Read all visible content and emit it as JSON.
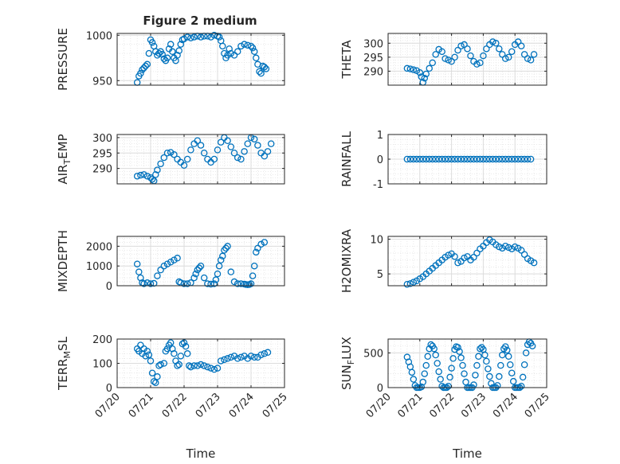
{
  "figure": {
    "title": "Figure 2 medium",
    "marker_color": "#0072BD"
  },
  "chart_data": [
    {
      "type": "scatter",
      "title": "Figure 2 medium",
      "xlabel": "",
      "ylabel": "PRESSURE",
      "xlim": [
        0,
        5
      ],
      "ylim": [
        945,
        1002
      ],
      "yticks": [
        950,
        1000
      ],
      "ytick_labels": [
        "950",
        "1000"
      ],
      "xticks": [
        0,
        1,
        2,
        3,
        4,
        5
      ],
      "xtick_labels": [],
      "grid": true,
      "minor_grid": true,
      "x": [
        0.6,
        0.65,
        0.7,
        0.75,
        0.8,
        0.85,
        0.9,
        0.95,
        1.0,
        1.05,
        1.1,
        1.15,
        1.2,
        1.25,
        1.3,
        1.35,
        1.4,
        1.45,
        1.5,
        1.55,
        1.6,
        1.65,
        1.7,
        1.75,
        1.8,
        1.85,
        1.9,
        1.95,
        2.0,
        2.1,
        2.2,
        2.3,
        2.4,
        2.5,
        2.6,
        2.7,
        2.8,
        2.9,
        3.0,
        3.05,
        3.1,
        3.15,
        3.2,
        3.25,
        3.3,
        3.35,
        3.4,
        3.5,
        3.6,
        3.7,
        3.8,
        3.9,
        4.0,
        4.05,
        4.1,
        4.15,
        4.2,
        4.25,
        4.3,
        4.35,
        4.4,
        4.45
      ],
      "y": [
        948,
        955,
        958,
        962,
        964,
        966,
        968,
        980,
        995,
        992,
        988,
        982,
        978,
        980,
        982,
        979,
        974,
        972,
        975,
        985,
        990,
        982,
        975,
        972,
        978,
        983,
        990,
        995,
        996,
        998,
        997,
        998,
        999,
        998,
        999,
        999,
        998,
        1000,
        999,
        998,
        994,
        988,
        980,
        975,
        978,
        985,
        980,
        978,
        982,
        988,
        990,
        989,
        988,
        986,
        982,
        975,
        968,
        960,
        958,
        966,
        965,
        963
      ]
    },
    {
      "type": "scatter",
      "title": "",
      "xlabel": "",
      "ylabel": "THETA",
      "xlim": [
        0,
        5
      ],
      "ylim": [
        285,
        303.5
      ],
      "yticks": [
        290,
        295,
        300
      ],
      "ytick_labels": [
        "290",
        "295",
        "300"
      ],
      "xticks": [
        0,
        1,
        2,
        3,
        4,
        5
      ],
      "xtick_labels": [],
      "grid": true,
      "minor_grid": true,
      "x": [
        0.6,
        0.7,
        0.8,
        0.9,
        1.0,
        1.05,
        1.1,
        1.15,
        1.2,
        1.3,
        1.4,
        1.5,
        1.6,
        1.7,
        1.8,
        1.9,
        2.0,
        2.1,
        2.2,
        2.3,
        2.4,
        2.5,
        2.6,
        2.7,
        2.8,
        2.9,
        3.0,
        3.1,
        3.2,
        3.3,
        3.4,
        3.5,
        3.6,
        3.7,
        3.8,
        3.9,
        4.0,
        4.1,
        4.2,
        4.3,
        4.4,
        4.5,
        4.6
      ],
      "y": [
        291,
        290.8,
        290.5,
        290.2,
        289.5,
        288,
        286,
        287.5,
        289,
        291,
        293,
        296,
        297.8,
        297,
        294.5,
        294,
        293.5,
        295,
        297.5,
        299,
        299.5,
        298,
        295.5,
        293.5,
        292.5,
        293,
        295.5,
        298,
        299.5,
        300.5,
        300,
        298,
        296,
        294.5,
        295,
        297,
        299.5,
        300.5,
        299,
        296,
        294.5,
        294,
        296
      ]
    },
    {
      "type": "scatter",
      "title": "",
      "xlabel": "",
      "ylabel": "AIR_TEMP",
      "xlim": [
        0,
        5
      ],
      "ylim": [
        285,
        301
      ],
      "yticks": [
        290,
        295,
        300
      ],
      "ytick_labels": [
        "290",
        "295",
        "300"
      ],
      "xticks": [
        0,
        1,
        2,
        3,
        4,
        5
      ],
      "xtick_labels": [],
      "grid": true,
      "minor_grid": true,
      "x": [
        0.6,
        0.7,
        0.8,
        0.9,
        1.0,
        1.05,
        1.1,
        1.15,
        1.2,
        1.3,
        1.4,
        1.5,
        1.6,
        1.7,
        1.8,
        1.9,
        2.0,
        2.1,
        2.2,
        2.3,
        2.4,
        2.5,
        2.6,
        2.7,
        2.8,
        2.9,
        3.0,
        3.1,
        3.2,
        3.3,
        3.4,
        3.5,
        3.6,
        3.7,
        3.8,
        3.9,
        4.0,
        4.1,
        4.2,
        4.3,
        4.4,
        4.5,
        4.6
      ],
      "y": [
        287.5,
        287.8,
        288,
        287.5,
        287,
        286.5,
        286,
        288,
        289.5,
        291.5,
        293.5,
        295,
        295.2,
        294.5,
        293,
        292,
        291,
        293,
        296,
        298,
        299,
        297.5,
        295,
        293,
        292,
        293,
        296,
        298.5,
        300,
        299,
        297,
        295,
        293.5,
        293,
        295.5,
        298,
        300,
        299.5,
        297.5,
        295,
        294,
        295.5,
        298
      ]
    },
    {
      "type": "scatter",
      "title": "",
      "xlabel": "",
      "ylabel": "RAINFALL",
      "xlim": [
        0,
        5
      ],
      "ylim": [
        -1,
        1
      ],
      "yticks": [
        -1,
        0,
        1
      ],
      "ytick_labels": [
        "-1",
        "0",
        "1"
      ],
      "xticks": [
        0,
        1,
        2,
        3,
        4,
        5
      ],
      "xtick_labels": [],
      "grid": true,
      "minor_grid": true,
      "x": [
        0.6,
        0.7,
        0.8,
        0.9,
        1.0,
        1.1,
        1.2,
        1.3,
        1.4,
        1.5,
        1.6,
        1.7,
        1.8,
        1.9,
        2.0,
        2.1,
        2.2,
        2.3,
        2.4,
        2.5,
        2.6,
        2.7,
        2.8,
        2.9,
        3.0,
        3.1,
        3.2,
        3.3,
        3.4,
        3.5,
        3.6,
        3.7,
        3.8,
        3.9,
        4.0,
        4.1,
        4.2,
        4.3,
        4.4,
        4.5
      ],
      "y": [
        0,
        0,
        0,
        0,
        0,
        0,
        0,
        0,
        0,
        0,
        0,
        0,
        0,
        0,
        0,
        0,
        0,
        0,
        0,
        0,
        0,
        0,
        0,
        0,
        0,
        0,
        0,
        0,
        0,
        0,
        0,
        0,
        0,
        0,
        0,
        0,
        0,
        0,
        0,
        0
      ]
    },
    {
      "type": "scatter",
      "title": "",
      "xlabel": "",
      "ylabel": "MIXDEPTH",
      "xlim": [
        0,
        5
      ],
      "ylim": [
        0,
        2500
      ],
      "yticks": [
        0,
        1000,
        2000
      ],
      "ytick_labels": [
        "0",
        "1000",
        "2000"
      ],
      "xticks": [
        0,
        1,
        2,
        3,
        4,
        5
      ],
      "xtick_labels": [],
      "grid": true,
      "minor_grid": true,
      "x": [
        0.6,
        0.65,
        0.7,
        0.75,
        0.8,
        0.9,
        1.0,
        1.1,
        1.2,
        1.3,
        1.4,
        1.5,
        1.6,
        1.7,
        1.8,
        1.85,
        1.9,
        2.0,
        2.1,
        2.2,
        2.3,
        2.35,
        2.4,
        2.45,
        2.5,
        2.6,
        2.7,
        2.8,
        2.9,
        2.95,
        3.0,
        3.05,
        3.1,
        3.15,
        3.2,
        3.25,
        3.3,
        3.4,
        3.5,
        3.6,
        3.7,
        3.8,
        3.85,
        3.9,
        3.95,
        4.0,
        4.05,
        4.1,
        4.15,
        4.2,
        4.3,
        4.4
      ],
      "y": [
        1100,
        700,
        400,
        150,
        100,
        150,
        100,
        120,
        500,
        800,
        1000,
        1100,
        1200,
        1300,
        1400,
        200,
        150,
        100,
        100,
        150,
        400,
        600,
        800,
        900,
        1000,
        400,
        100,
        80,
        100,
        300,
        600,
        1000,
        1300,
        1500,
        1800,
        1900,
        2000,
        700,
        200,
        100,
        100,
        80,
        60,
        50,
        60,
        100,
        500,
        1000,
        1700,
        1900,
        2100,
        2200
      ]
    },
    {
      "type": "scatter",
      "title": "",
      "xlabel": "",
      "ylabel": "H2OMIXRA",
      "xlim": [
        0,
        5
      ],
      "ylim": [
        3.3,
        10.4
      ],
      "yticks": [
        5,
        10
      ],
      "ytick_labels": [
        "5",
        "10"
      ],
      "xticks": [
        0,
        1,
        2,
        3,
        4,
        5
      ],
      "xtick_labels": [],
      "grid": true,
      "minor_grid": true,
      "x": [
        0.6,
        0.7,
        0.8,
        0.9,
        1.0,
        1.1,
        1.2,
        1.3,
        1.4,
        1.5,
        1.6,
        1.7,
        1.8,
        1.9,
        2.0,
        2.1,
        2.2,
        2.3,
        2.4,
        2.5,
        2.6,
        2.7,
        2.8,
        2.9,
        3.0,
        3.1,
        3.2,
        3.3,
        3.4,
        3.5,
        3.6,
        3.7,
        3.8,
        3.9,
        4.0,
        4.1,
        4.2,
        4.3,
        4.4,
        4.5,
        4.6
      ],
      "y": [
        3.5,
        3.6,
        3.8,
        4.0,
        4.3,
        4.6,
        5.0,
        5.4,
        5.8,
        6.2,
        6.6,
        7.0,
        7.4,
        7.7,
        7.9,
        7.5,
        6.6,
        6.8,
        7.3,
        7.5,
        7.0,
        7.4,
        8.0,
        8.6,
        9.0,
        9.5,
        9.9,
        9.6,
        9.2,
        8.9,
        8.7,
        9.0,
        8.8,
        8.6,
        8.9,
        8.7,
        8.4,
        7.8,
        7.2,
        6.9,
        6.6
      ]
    },
    {
      "type": "scatter",
      "title": "",
      "xlabel": "Time",
      "ylabel": "TERR_MSL",
      "xlim": [
        0,
        5
      ],
      "ylim": [
        0,
        200
      ],
      "yticks": [
        0,
        100,
        200
      ],
      "ytick_labels": [
        "0",
        "100",
        "200"
      ],
      "xticks": [
        0,
        1,
        2,
        3,
        4,
        5
      ],
      "xtick_labels": [
        "07/20",
        "07/21",
        "07/22",
        "07/23",
        "07/24",
        "07/25"
      ],
      "grid": true,
      "minor_grid": true,
      "x": [
        0.6,
        0.65,
        0.7,
        0.75,
        0.8,
        0.85,
        0.9,
        0.95,
        1.0,
        1.05,
        1.1,
        1.15,
        1.2,
        1.25,
        1.3,
        1.4,
        1.45,
        1.5,
        1.55,
        1.6,
        1.65,
        1.7,
        1.75,
        1.8,
        1.85,
        1.9,
        1.95,
        2.0,
        2.05,
        2.1,
        2.15,
        2.2,
        2.3,
        2.4,
        2.5,
        2.6,
        2.7,
        2.8,
        2.9,
        3.0,
        3.1,
        3.2,
        3.3,
        3.4,
        3.5,
        3.6,
        3.7,
        3.8,
        3.9,
        4.0,
        4.1,
        4.2,
        4.3,
        4.4,
        4.5
      ],
      "y": [
        160,
        150,
        175,
        140,
        160,
        130,
        150,
        135,
        110,
        60,
        25,
        20,
        45,
        90,
        95,
        100,
        150,
        160,
        175,
        185,
        160,
        140,
        110,
        90,
        95,
        130,
        180,
        185,
        170,
        140,
        90,
        85,
        90,
        90,
        95,
        90,
        85,
        80,
        75,
        80,
        110,
        115,
        120,
        125,
        130,
        120,
        125,
        130,
        120,
        130,
        125,
        125,
        135,
        140,
        145
      ]
    },
    {
      "type": "scatter",
      "title": "",
      "xlabel": "Time",
      "ylabel": "SUN_FLUX",
      "xlim": [
        0,
        5
      ],
      "ylim": [
        0,
        700
      ],
      "yticks": [
        0,
        500
      ],
      "ytick_labels": [
        "0",
        "500"
      ],
      "xticks": [
        0,
        1,
        2,
        3,
        4,
        5
      ],
      "xtick_labels": [
        "07/20",
        "07/21",
        "07/22",
        "07/23",
        "07/24",
        "07/25"
      ],
      "grid": true,
      "minor_grid": true,
      "x": [
        0.6,
        0.65,
        0.7,
        0.75,
        0.8,
        0.85,
        0.9,
        0.95,
        1.0,
        1.05,
        1.1,
        1.15,
        1.2,
        1.25,
        1.3,
        1.35,
        1.4,
        1.45,
        1.5,
        1.55,
        1.6,
        1.65,
        1.7,
        1.75,
        1.8,
        1.85,
        1.9,
        1.95,
        2.0,
        2.05,
        2.1,
        2.15,
        2.2,
        2.25,
        2.3,
        2.35,
        2.4,
        2.45,
        2.5,
        2.55,
        2.6,
        2.65,
        2.7,
        2.75,
        2.8,
        2.85,
        2.9,
        2.95,
        3.0,
        3.05,
        3.1,
        3.15,
        3.2,
        3.25,
        3.3,
        3.35,
        3.4,
        3.45,
        3.5,
        3.55,
        3.6,
        3.65,
        3.7,
        3.75,
        3.8,
        3.85,
        3.9,
        3.95,
        4.0,
        4.05,
        4.1,
        4.15,
        4.2,
        4.25,
        4.3,
        4.35,
        4.4,
        4.45,
        4.5,
        4.55
      ],
      "y": [
        440,
        370,
        300,
        220,
        120,
        30,
        0,
        0,
        0,
        10,
        80,
        200,
        320,
        450,
        560,
        620,
        600,
        560,
        470,
        350,
        230,
        120,
        20,
        0,
        0,
        0,
        20,
        150,
        280,
        420,
        550,
        590,
        580,
        520,
        430,
        320,
        200,
        80,
        0,
        0,
        0,
        0,
        40,
        180,
        320,
        450,
        560,
        580,
        550,
        470,
        380,
        270,
        160,
        60,
        0,
        0,
        0,
        30,
        160,
        320,
        470,
        560,
        590,
        540,
        450,
        330,
        210,
        90,
        0,
        0,
        0,
        0,
        20,
        150,
        330,
        500,
        620,
        660,
        640,
        600
      ]
    }
  ]
}
